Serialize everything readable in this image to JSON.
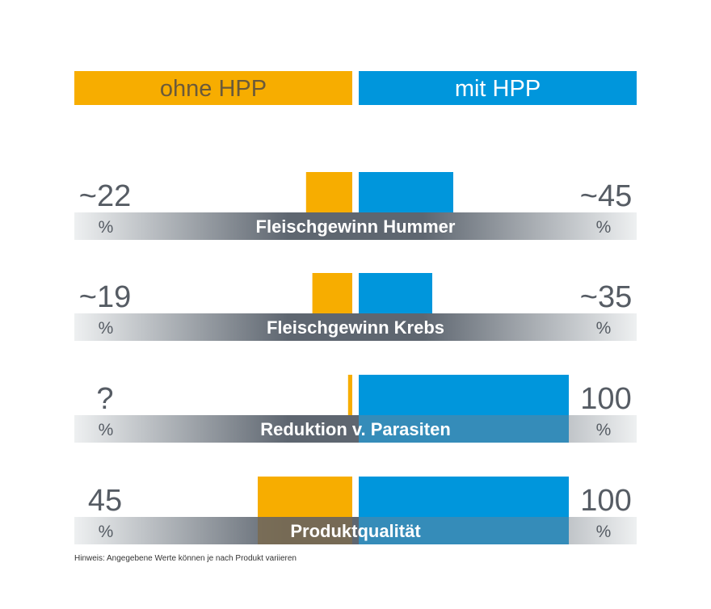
{
  "header": {
    "left_label": "ohne HPP",
    "right_label": "mit HPP"
  },
  "colors": {
    "ohne": "#F7AD00",
    "mit": "#0096DC",
    "band_dark": "#5E6670",
    "band_light": "#EEF0F1",
    "value_text": "#565C64",
    "header_left_text": "#6B5A3A",
    "header_right_text": "#FFFFFF",
    "band_text": "#FFFFFF"
  },
  "chart_data": {
    "type": "bar",
    "series": [
      {
        "name": "ohne HPP",
        "values": [
          22,
          19,
          2,
          45
        ]
      },
      {
        "name": "mit HPP",
        "values": [
          45,
          35,
          100,
          100
        ]
      }
    ],
    "categories": [
      "Fleischgewinn Hummer",
      "Fleischgewinn Krebs",
      "Reduktion v. Parasiten",
      "Produktqualität"
    ],
    "rows": [
      {
        "category": "Fleischgewinn Hummer",
        "left_text": "~22",
        "left_unit": "%",
        "right_text": "~45",
        "right_unit": "%"
      },
      {
        "category": "Fleischgewinn Krebs",
        "left_text": "~19",
        "left_unit": "%",
        "right_text": "~35",
        "right_unit": "%"
      },
      {
        "category": "Reduktion v. Parasiten",
        "left_text": "?",
        "left_unit": "%",
        "right_text": "100",
        "right_unit": "%"
      },
      {
        "category": "Produktqualität",
        "left_text": "45",
        "left_unit": "%",
        "right_text": "100",
        "right_unit": "%"
      }
    ],
    "xlim": [
      0,
      100
    ]
  },
  "footnote": "Hinweis: Angegebene Werte können je nach Produkt variieren"
}
